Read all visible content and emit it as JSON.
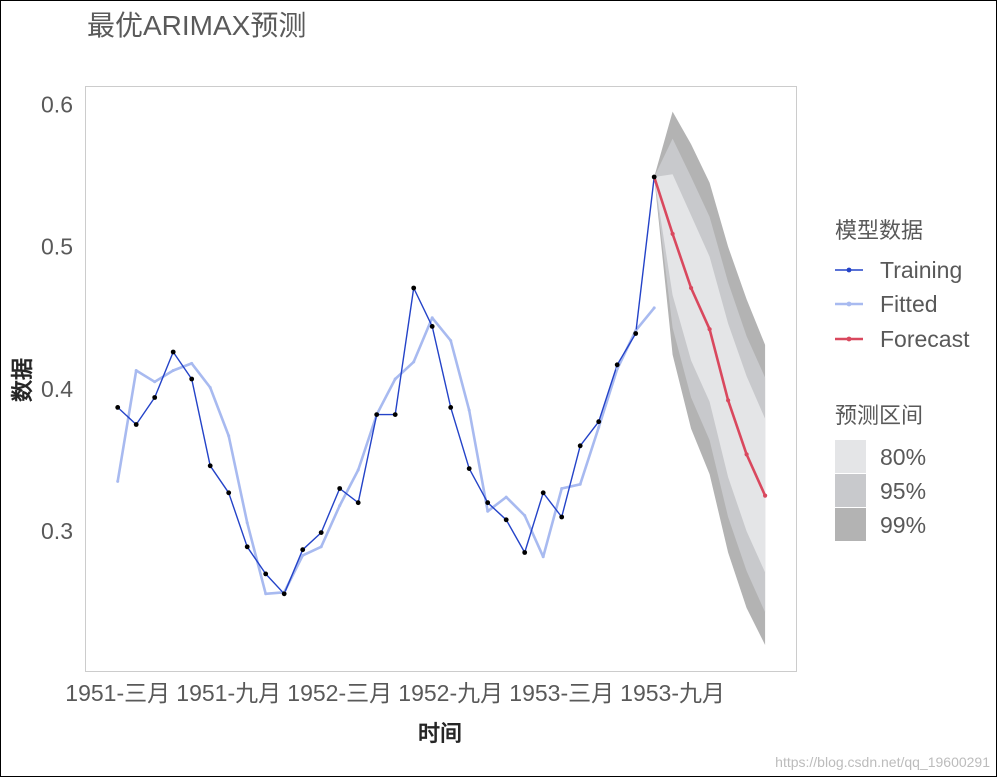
{
  "watermark": "https://blog.csdn.net/qq_19600291",
  "chart_data": {
    "type": "line",
    "title": "最优ARIMAX预测",
    "xlabel": "时间",
    "ylabel": "数据",
    "xlim": [
      "1951-01-08",
      "1954-03-23"
    ],
    "ylim": [
      0.201,
      0.613
    ],
    "grid": false,
    "xticks": [
      {
        "date": "1951-03",
        "label": "1951-三月"
      },
      {
        "date": "1951-09",
        "label": "1951-九月"
      },
      {
        "date": "1952-03",
        "label": "1952-三月"
      },
      {
        "date": "1952-09",
        "label": "1952-九月"
      },
      {
        "date": "1953-03",
        "label": "1953-三月"
      },
      {
        "date": "1953-09",
        "label": "1953-九月"
      }
    ],
    "yticks": [
      {
        "value": 0.3,
        "label": "0.3"
      },
      {
        "value": 0.4,
        "label": "0.4"
      },
      {
        "value": 0.5,
        "label": "0.5"
      },
      {
        "value": 0.6,
        "label": "0.6"
      }
    ],
    "legend": {
      "title": "模型数据",
      "position": "right"
    },
    "series": [
      {
        "name": "Training",
        "color": "#2443c8",
        "marker_color": "#000000",
        "x": [
          "1951-03",
          "1951-04",
          "1951-05",
          "1951-06",
          "1951-07",
          "1951-08",
          "1951-09",
          "1951-10",
          "1951-11",
          "1951-12",
          "1952-01",
          "1952-02",
          "1952-03",
          "1952-04",
          "1952-05",
          "1952-06",
          "1952-07",
          "1952-08",
          "1952-09",
          "1952-10",
          "1952-11",
          "1952-12",
          "1953-01",
          "1953-02",
          "1953-03",
          "1953-04",
          "1953-05",
          "1953-06",
          "1953-07",
          "1953-08"
        ],
        "values": [
          0.387,
          0.375,
          0.394,
          0.426,
          0.407,
          0.346,
          0.327,
          0.289,
          0.27,
          0.256,
          0.287,
          0.299,
          0.33,
          0.32,
          0.382,
          0.382,
          0.471,
          0.444,
          0.387,
          0.344,
          0.32,
          0.308,
          0.285,
          0.327,
          0.31,
          0.36,
          0.377,
          0.417,
          0.439,
          0.549
        ]
      },
      {
        "name": "Fitted",
        "color": "#a8baf0",
        "x": [
          "1951-03",
          "1951-04",
          "1951-05",
          "1951-06",
          "1951-07",
          "1951-08",
          "1951-09",
          "1951-10",
          "1951-11",
          "1951-12",
          "1952-01",
          "1952-02",
          "1952-03",
          "1952-04",
          "1952-05",
          "1952-06",
          "1952-07",
          "1952-08",
          "1952-09",
          "1952-10",
          "1952-11",
          "1952-12",
          "1953-01",
          "1953-02",
          "1953-03",
          "1953-04",
          "1953-05",
          "1953-06",
          "1953-07",
          "1953-08"
        ],
        "values": [
          0.335,
          0.413,
          0.405,
          0.413,
          0.418,
          0.401,
          0.367,
          0.306,
          0.256,
          0.257,
          0.283,
          0.289,
          0.318,
          0.343,
          0.382,
          0.407,
          0.419,
          0.45,
          0.434,
          0.385,
          0.314,
          0.324,
          0.311,
          0.282,
          0.33,
          0.333,
          0.373,
          0.414,
          0.441,
          0.457
        ]
      },
      {
        "name": "Forecast",
        "color": "#d9485e",
        "x": [
          "1953-08",
          "1953-09",
          "1953-10",
          "1953-11",
          "1953-12",
          "1954-01",
          "1954-02"
        ],
        "values": [
          0.549,
          0.509,
          0.471,
          0.442,
          0.392,
          0.354,
          0.325
        ]
      }
    ],
    "intervals": {
      "title": "预测区间",
      "x": [
        "1953-08",
        "1953-09",
        "1953-10",
        "1953-11",
        "1953-12",
        "1954-01",
        "1954-02"
      ],
      "bands": [
        {
          "label": "80%",
          "color": "#e4e5e7",
          "lower": [
            0.549,
            0.466,
            0.42,
            0.391,
            0.338,
            0.3,
            0.271
          ],
          "upper": [
            0.549,
            0.551,
            0.522,
            0.493,
            0.446,
            0.409,
            0.379
          ]
        },
        {
          "label": "95%",
          "color": "#c8c9cc",
          "lower": [
            0.549,
            0.443,
            0.394,
            0.364,
            0.31,
            0.272,
            0.243
          ],
          "upper": [
            0.549,
            0.576,
            0.549,
            0.521,
            0.475,
            0.437,
            0.408
          ]
        },
        {
          "label": "99%",
          "color": "#b3b3b3",
          "lower": [
            0.549,
            0.424,
            0.372,
            0.34,
            0.285,
            0.246,
            0.22
          ],
          "upper": [
            0.549,
            0.595,
            0.572,
            0.545,
            0.5,
            0.463,
            0.431
          ]
        }
      ]
    }
  }
}
